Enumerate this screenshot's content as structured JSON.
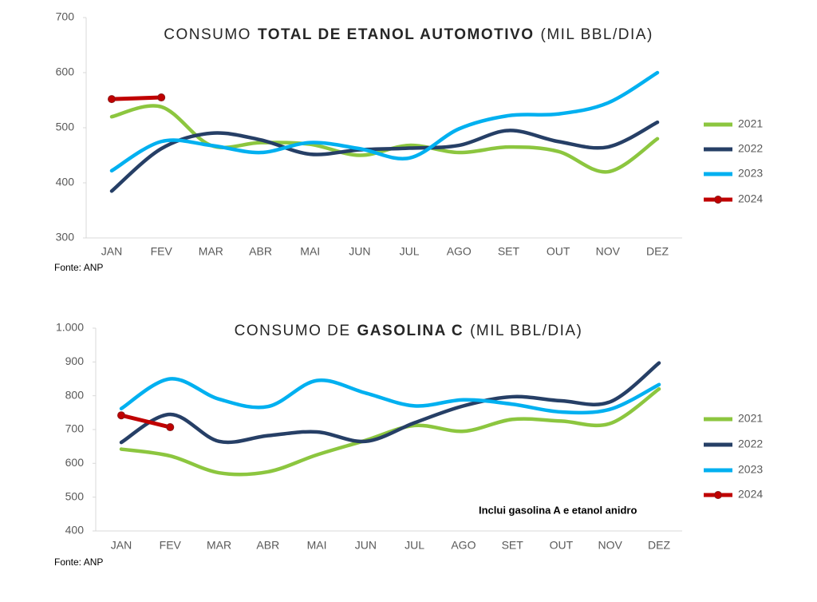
{
  "chart_data": [
    {
      "type": "line",
      "title": [
        "CONSUMO",
        "TOTAL DE ETANOL AUTOMOTIVO",
        "(MIL BBL/DIA)"
      ],
      "categories": [
        "JAN",
        "FEV",
        "MAR",
        "ABR",
        "MAI",
        "JUN",
        "JUL",
        "AGO",
        "SET",
        "OUT",
        "NOV",
        "DEZ"
      ],
      "ylim": [
        300,
        700
      ],
      "yticks": [
        300,
        400,
        500,
        600,
        700
      ],
      "series": [
        {
          "name": "2021",
          "color": "#8cc63f",
          "values": [
            520,
            538,
            468,
            473,
            470,
            450,
            468,
            455,
            465,
            457,
            420,
            480
          ]
        },
        {
          "name": "2022",
          "color": "#263f66",
          "values": [
            385,
            462,
            490,
            478,
            452,
            460,
            463,
            468,
            495,
            475,
            465,
            510
          ]
        },
        {
          "name": "2023",
          "color": "#00b0f0",
          "values": [
            422,
            475,
            468,
            455,
            473,
            462,
            445,
            498,
            522,
            525,
            545,
            600
          ]
        },
        {
          "name": "2024",
          "color": "#c00000",
          "marker": "circle",
          "values": [
            552,
            555,
            null,
            null,
            null,
            null,
            null,
            null,
            null,
            null,
            null,
            null
          ]
        }
      ],
      "source": "Fonte: ANP"
    },
    {
      "type": "line",
      "title": [
        "CONSUMO DE",
        "GASOLINA C",
        "(MIL BBL/DIA)"
      ],
      "categories": [
        "JAN",
        "FEV",
        "MAR",
        "ABR",
        "MAI",
        "JUN",
        "JUL",
        "AGO",
        "SET",
        "OUT",
        "NOV",
        "DEZ"
      ],
      "ylim": [
        400,
        1000
      ],
      "yticks": [
        400,
        500,
        600,
        700,
        800,
        900,
        {
          "value": 1000,
          "label": "1.000"
        }
      ],
      "series": [
        {
          "name": "2021",
          "color": "#8cc63f",
          "values": [
            642,
            622,
            572,
            575,
            625,
            668,
            712,
            695,
            730,
            725,
            718,
            820
          ]
        },
        {
          "name": "2022",
          "color": "#263f66",
          "values": [
            662,
            745,
            665,
            682,
            693,
            665,
            720,
            770,
            797,
            785,
            782,
            897
          ]
        },
        {
          "name": "2023",
          "color": "#00b0f0",
          "values": [
            762,
            850,
            790,
            768,
            845,
            808,
            770,
            788,
            775,
            752,
            760,
            833
          ]
        },
        {
          "name": "2024",
          "color": "#c00000",
          "marker": "circle",
          "values": [
            742,
            707,
            null,
            null,
            null,
            null,
            null,
            null,
            null,
            null,
            null,
            null
          ]
        }
      ],
      "annotation": "Inclui gasolina A e etanol anidro",
      "source": "Fonte: ANP"
    }
  ]
}
